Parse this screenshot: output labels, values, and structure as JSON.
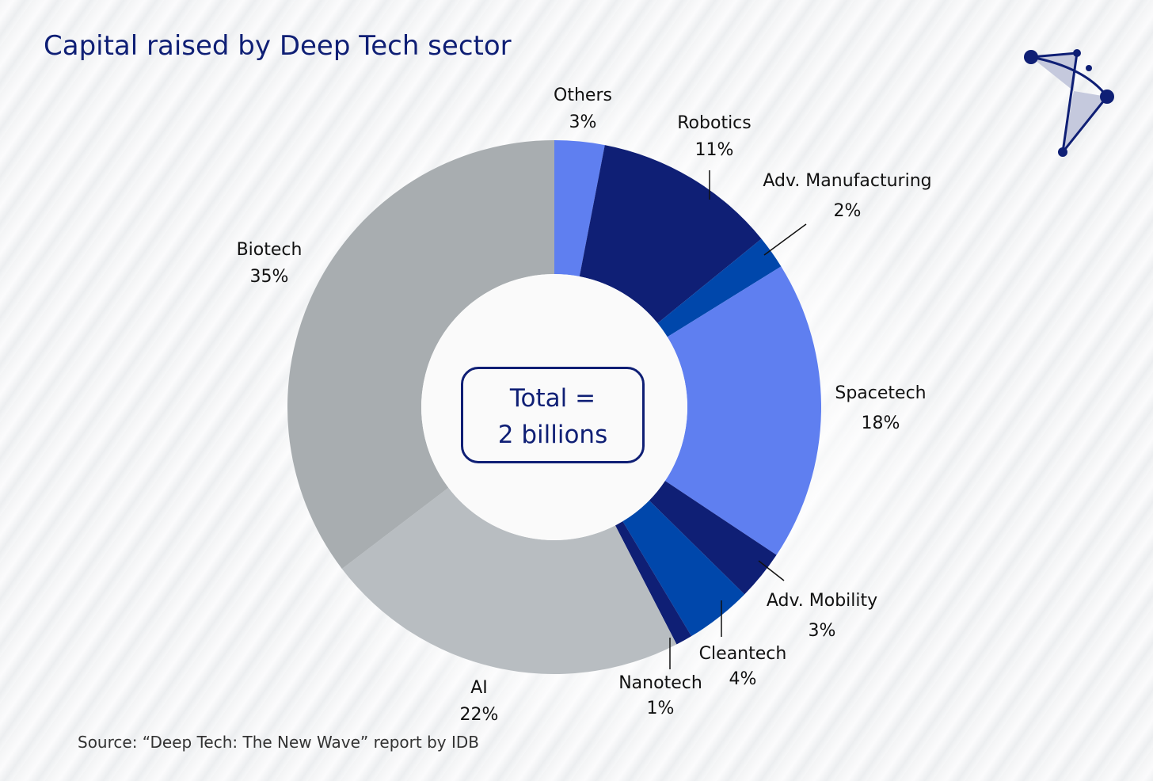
{
  "chart_data": {
    "type": "pie",
    "subtype": "donut",
    "title": "Capital raised by Deep Tech sector",
    "center_label": [
      "Total =",
      "2 billions"
    ],
    "source": "Source: “Deep Tech: The New Wave” report by IDB",
    "unit": "%",
    "slices": [
      {
        "label": "Others",
        "value": 3,
        "color": "#5f7ff0"
      },
      {
        "label": "Robotics",
        "value": 11,
        "color": "#0f1f75"
      },
      {
        "label": "Adv. Manufacturing",
        "value": 2,
        "color": "#0047ab"
      },
      {
        "label": "Spacetech",
        "value": 18,
        "color": "#5f7ff0"
      },
      {
        "label": "Adv. Mobility",
        "value": 3,
        "color": "#0f1f75"
      },
      {
        "label": "Cleantech",
        "value": 4,
        "color": "#0047ab"
      },
      {
        "label": "Nanotech",
        "value": 1,
        "color": "#0f1f75"
      },
      {
        "label": "AI",
        "value": 22,
        "color": "#b8bdc1"
      },
      {
        "label": "Biotech",
        "value": 35,
        "color": "#a8adb0"
      }
    ],
    "value_labels": [
      "3%",
      "11%",
      "2%",
      "18%",
      "3%",
      "4%",
      "1%",
      "22%",
      "35%"
    ]
  }
}
